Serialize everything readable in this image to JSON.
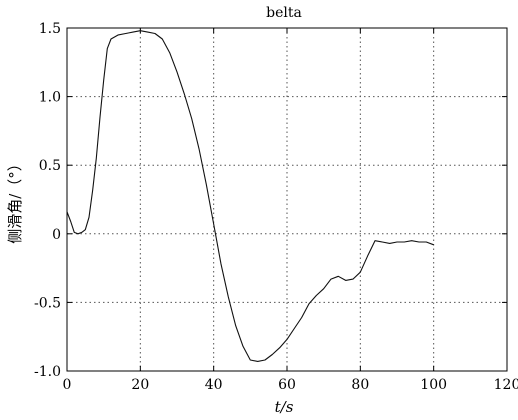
{
  "chart_data": {
    "type": "line",
    "title": "belta",
    "xlabel": "t/s",
    "ylabel": "侧滑角/（°）",
    "xlim": [
      0,
      120
    ],
    "ylim": [
      -1.0,
      1.5
    ],
    "xticks": [
      0,
      20,
      40,
      60,
      80,
      100,
      120
    ],
    "yticks": [
      -1.0,
      -0.5,
      0,
      0.5,
      1.0,
      1.5
    ],
    "xtick_labels": [
      "0",
      "20",
      "40",
      "60",
      "80",
      "100",
      "120"
    ],
    "ytick_labels": [
      "-1.0",
      "-0.5",
      "0",
      "0.5",
      "1.0",
      "1.5"
    ],
    "grid": true,
    "series": [
      {
        "x": [
          0,
          1,
          2,
          3,
          4,
          5,
          6,
          7,
          8,
          9,
          10,
          11,
          12,
          14,
          16,
          18,
          20,
          22,
          24,
          26,
          28,
          30,
          32,
          34,
          36,
          38,
          40,
          42,
          44,
          46,
          48,
          50,
          52,
          54,
          56,
          58,
          60,
          62,
          64,
          66,
          68,
          70,
          72,
          74,
          76,
          78,
          80,
          82,
          84,
          86,
          88,
          90,
          92,
          94,
          96,
          98,
          100
        ],
        "y": [
          0.16,
          0.09,
          0.01,
          0.0,
          0.01,
          0.03,
          0.12,
          0.32,
          0.55,
          0.85,
          1.12,
          1.35,
          1.42,
          1.45,
          1.46,
          1.47,
          1.48,
          1.47,
          1.46,
          1.42,
          1.32,
          1.18,
          1.02,
          0.84,
          0.62,
          0.36,
          0.07,
          -0.22,
          -0.46,
          -0.67,
          -0.82,
          -0.92,
          -0.93,
          -0.92,
          -0.88,
          -0.83,
          -0.77,
          -0.69,
          -0.61,
          -0.51,
          -0.45,
          -0.4,
          -0.33,
          -0.31,
          -0.34,
          -0.33,
          -0.28,
          -0.16,
          -0.05,
          -0.06,
          -0.07,
          -0.06,
          -0.06,
          -0.05,
          -0.06,
          -0.06,
          -0.08
        ]
      }
    ]
  }
}
